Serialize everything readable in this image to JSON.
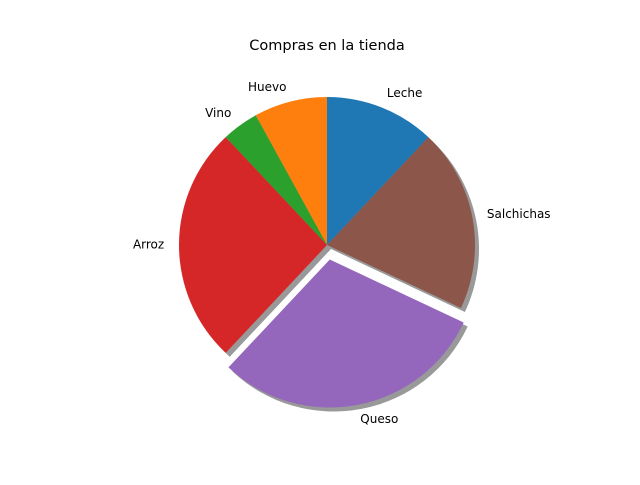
{
  "chart_data": {
    "type": "pie",
    "title": "Compras en la tienda",
    "start_angle_deg": 90,
    "direction": "counterclockwise",
    "shadow": true,
    "slices": [
      {
        "label": "Huevo",
        "value": 8,
        "color": "#ff7f0e",
        "explode": 0
      },
      {
        "label": "Vino",
        "value": 4,
        "color": "#2ca02c",
        "explode": 0
      },
      {
        "label": "Arroz",
        "value": 26,
        "color": "#d62728",
        "explode": 0
      },
      {
        "label": "Queso",
        "value": 30,
        "color": "#9467bd",
        "explode": 0.1
      },
      {
        "label": "Salchichas",
        "value": 20,
        "color": "#8c564b",
        "explode": 0
      },
      {
        "label": "Leche",
        "value": 12,
        "color": "#1f77b4",
        "explode": 0
      }
    ]
  }
}
